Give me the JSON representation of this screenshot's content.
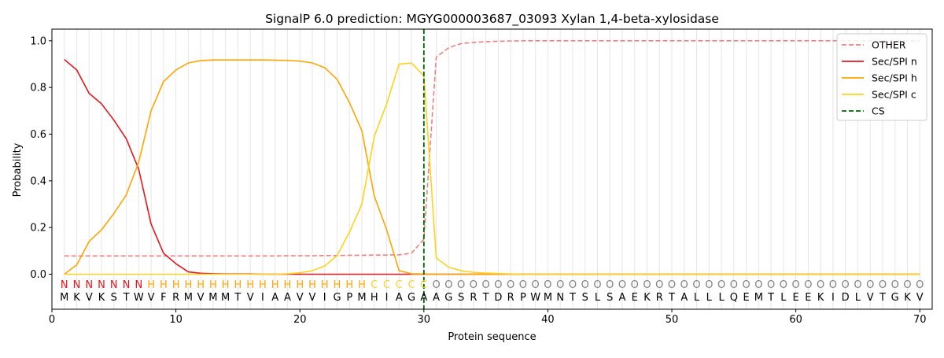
{
  "chart_data": {
    "type": "line",
    "title": "SignalP 6.0 prediction: MGYG000003687_03093 Xylan 1,4-beta-xylosidase",
    "xlabel": "Protein sequence",
    "ylabel": "Probability",
    "xlim": [
      0,
      71
    ],
    "ylim": [
      -0.15,
      1.05
    ],
    "xticks": [
      0,
      10,
      20,
      30,
      40,
      50,
      60,
      70
    ],
    "yticks": [
      0.0,
      0.2,
      0.4,
      0.6,
      0.8,
      1.0
    ],
    "xtick_labels": [
      "0",
      "10",
      "20",
      "30",
      "40",
      "50",
      "60",
      "70"
    ],
    "ytick_labels": [
      "0.0",
      "0.2",
      "0.4",
      "0.6",
      "0.8",
      "1.0"
    ],
    "grid": "vertical lines at each residue",
    "legend_position": "top-right",
    "x": [
      1,
      2,
      3,
      4,
      5,
      6,
      7,
      8,
      9,
      10,
      11,
      12,
      13,
      14,
      15,
      16,
      17,
      18,
      19,
      20,
      21,
      22,
      23,
      24,
      25,
      26,
      27,
      28,
      29,
      30,
      31,
      32,
      33,
      34,
      35,
      36,
      37,
      38,
      39,
      40,
      41,
      42,
      43,
      44,
      45,
      46,
      47,
      48,
      49,
      50,
      51,
      52,
      53,
      54,
      55,
      56,
      57,
      58,
      59,
      60,
      61,
      62,
      63,
      64,
      65,
      66,
      67,
      68,
      69,
      70
    ],
    "series": [
      {
        "name": "OTHER",
        "color": "#f08080",
        "dashed": true,
        "values": [
          0.078,
          0.078,
          0.078,
          0.078,
          0.078,
          0.078,
          0.078,
          0.078,
          0.078,
          0.078,
          0.078,
          0.078,
          0.078,
          0.078,
          0.078,
          0.078,
          0.078,
          0.078,
          0.079,
          0.079,
          0.079,
          0.08,
          0.08,
          0.081,
          0.081,
          0.082,
          0.082,
          0.083,
          0.09,
          0.15,
          0.93,
          0.97,
          0.988,
          0.993,
          0.996,
          0.998,
          0.999,
          1.0,
          1.0,
          1.0,
          1.0,
          1.0,
          1.0,
          1.0,
          1.0,
          1.0,
          1.0,
          1.0,
          1.0,
          1.0,
          1.0,
          1.0,
          1.0,
          1.0,
          1.0,
          1.0,
          1.0,
          1.0,
          1.0,
          1.0,
          1.0,
          1.0,
          1.0,
          1.0,
          1.0,
          1.0,
          1.0,
          1.0,
          1.0,
          1.0
        ]
      },
      {
        "name": "Sec/SPI n",
        "color": "#e8141c",
        "dashed": false,
        "values": [
          0.92,
          0.875,
          0.775,
          0.73,
          0.66,
          0.58,
          0.45,
          0.215,
          0.09,
          0.045,
          0.01,
          0.004,
          0.002,
          0.001,
          0.001,
          0.001,
          0.0,
          0.0,
          0.0,
          0.0,
          0.0,
          0.0,
          0.0,
          0.0,
          0.0,
          0.0,
          0.0,
          0.0,
          0.0,
          0.0,
          0.0,
          0.0,
          0.0,
          0.0,
          0.0,
          0.0,
          0.0,
          0.0,
          0.0,
          0.0,
          0.0,
          0.0,
          0.0,
          0.0,
          0.0,
          0.0,
          0.0,
          0.0,
          0.0,
          0.0,
          0.0,
          0.0,
          0.0,
          0.0,
          0.0,
          0.0,
          0.0,
          0.0,
          0.0,
          0.0,
          0.0,
          0.0,
          0.0,
          0.0,
          0.0,
          0.0,
          0.0,
          0.0,
          0.0,
          0.0
        ]
      },
      {
        "name": "Sec/SPI h",
        "color": "#ffa500",
        "dashed": false,
        "values": [
          0.0,
          0.04,
          0.14,
          0.19,
          0.26,
          0.34,
          0.48,
          0.7,
          0.825,
          0.875,
          0.905,
          0.915,
          0.918,
          0.918,
          0.918,
          0.918,
          0.918,
          0.917,
          0.916,
          0.913,
          0.905,
          0.885,
          0.835,
          0.735,
          0.615,
          0.335,
          0.19,
          0.015,
          0.002,
          0.001,
          0.0,
          0.0,
          0.0,
          0.0,
          0.0,
          0.0,
          0.0,
          0.0,
          0.0,
          0.0,
          0.0,
          0.0,
          0.0,
          0.0,
          0.0,
          0.0,
          0.0,
          0.0,
          0.0,
          0.0,
          0.0,
          0.0,
          0.0,
          0.0,
          0.0,
          0.0,
          0.0,
          0.0,
          0.0,
          0.0,
          0.0,
          0.0,
          0.0,
          0.0,
          0.0,
          0.0,
          0.0,
          0.0,
          0.0,
          0.0
        ]
      },
      {
        "name": "Sec/SPI c",
        "color": "#ffd21e",
        "dashed": false,
        "values": [
          0.0,
          0.0,
          0.0,
          0.0,
          0.0,
          0.0,
          0.0,
          0.0,
          0.0,
          0.0,
          0.0,
          0.0,
          0.0,
          0.0,
          0.0,
          0.0,
          0.0,
          0.0,
          0.002,
          0.006,
          0.015,
          0.035,
          0.08,
          0.18,
          0.3,
          0.59,
          0.73,
          0.9,
          0.905,
          0.85,
          0.07,
          0.03,
          0.015,
          0.008,
          0.005,
          0.003,
          0.001,
          0.0,
          0.0,
          0.0,
          0.0,
          0.0,
          0.0,
          0.0,
          0.0,
          0.0,
          0.0,
          0.0,
          0.0,
          0.0,
          0.0,
          0.0,
          0.0,
          0.0,
          0.0,
          0.0,
          0.0,
          0.0,
          0.0,
          0.0,
          0.0,
          0.0,
          0.0,
          0.0,
          0.0,
          0.0,
          0.0,
          0.0,
          0.0,
          0.0
        ]
      }
    ],
    "cs": {
      "name": "CS",
      "x": 30,
      "color": "#006400"
    },
    "sequence": [
      "M",
      "K",
      "V",
      "K",
      "S",
      "T",
      "W",
      "V",
      "F",
      "R",
      "M",
      "V",
      "M",
      "M",
      "T",
      "V",
      "I",
      "A",
      "A",
      "V",
      "V",
      "I",
      "G",
      "P",
      "M",
      "H",
      "I",
      "A",
      "G",
      "A",
      "A",
      "G",
      "S",
      "R",
      "T",
      "D",
      "R",
      "P",
      "W",
      "M",
      "N",
      "T",
      "S",
      "L",
      "S",
      "A",
      "E",
      "K",
      "R",
      "T",
      "A",
      "L",
      "L",
      "L",
      "Q",
      "E",
      "M",
      "T",
      "L",
      "E",
      "E",
      "K",
      "I",
      "D",
      "L",
      "V",
      "T",
      "G",
      "K",
      "V"
    ],
    "labels": [
      "N",
      "N",
      "N",
      "N",
      "N",
      "N",
      "N",
      "H",
      "H",
      "H",
      "H",
      "H",
      "H",
      "H",
      "H",
      "H",
      "H",
      "H",
      "H",
      "H",
      "H",
      "H",
      "H",
      "H",
      "H",
      "C",
      "C",
      "C",
      "C",
      "C",
      "O",
      "O",
      "O",
      "O",
      "O",
      "O",
      "O",
      "O",
      "O",
      "O",
      "O",
      "O",
      "O",
      "O",
      "O",
      "O",
      "O",
      "O",
      "O",
      "O",
      "O",
      "O",
      "O",
      "O",
      "O",
      "O",
      "O",
      "O",
      "O",
      "O",
      "O",
      "O",
      "O",
      "O",
      "O",
      "O",
      "O",
      "O",
      "O",
      "O"
    ],
    "label_colors": {
      "N": "#e8141c",
      "H": "#ffa500",
      "C": "#ffd21e",
      "O": "#808080"
    }
  }
}
